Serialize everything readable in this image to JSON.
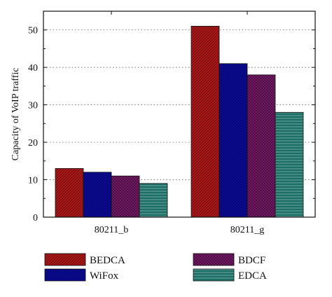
{
  "chart_data": {
    "type": "bar",
    "title": "",
    "xlabel": "",
    "ylabel": "Capacity of VoIP traffic",
    "categories": [
      "80211_b",
      "80211_g"
    ],
    "ylim": [
      0,
      55
    ],
    "yticks": [
      0,
      10,
      20,
      30,
      40,
      50
    ],
    "grid": true,
    "legend_position": "bottom",
    "series": [
      {
        "name": "BEDCA",
        "values": [
          13,
          51
        ],
        "color": "#b01818",
        "pattern": "diagonal-hatch"
      },
      {
        "name": "WiFox",
        "values": [
          12,
          41
        ],
        "color": "#0a0a9c",
        "pattern": "diagonal-hatch"
      },
      {
        "name": "BDCF",
        "values": [
          11,
          38
        ],
        "color": "#7a1a6a",
        "pattern": "cross-hatch"
      },
      {
        "name": "EDCA",
        "values": [
          9,
          28
        ],
        "color": "#1b6e66",
        "pattern": "horizontal-lines"
      }
    ]
  }
}
